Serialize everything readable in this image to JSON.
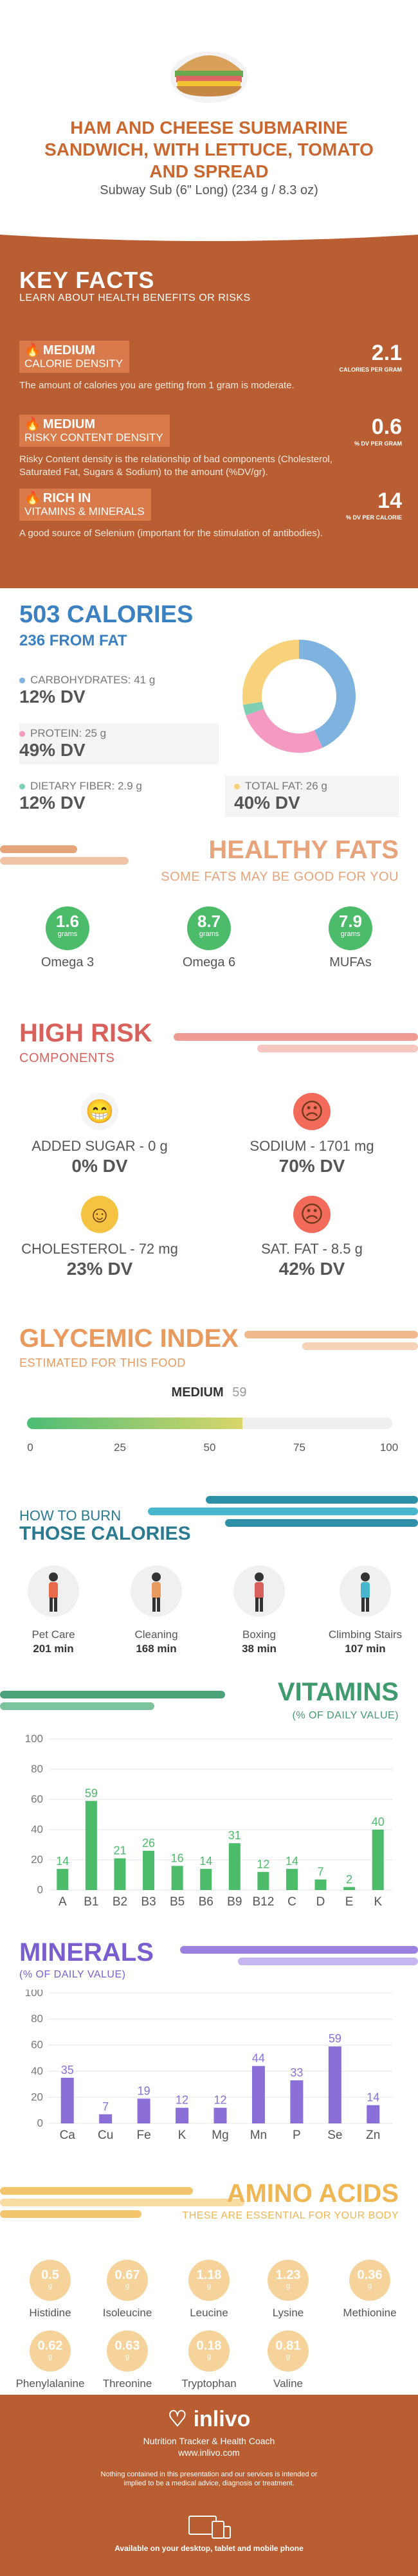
{
  "header": {
    "title": "HAM AND CHEESE SUBMARINE SANDWICH, WITH LETTUCE, TOMATO AND SPREAD",
    "subtitle": "Subway Sub (6\" Long) (234 g / 8.3 oz)"
  },
  "key_facts": {
    "title": "KEY FACTS",
    "subtitle": "LEARN ABOUT HEALTH BENEFITS OR RISKS",
    "items": [
      {
        "level": "MEDIUM",
        "label": "CALORIE DENSITY",
        "value": "2.1",
        "unit": "CALORIES PER GRAM",
        "desc": "The amount of calories you are getting from 1 gram is moderate.",
        "icon": "flame-icon"
      },
      {
        "level": "MEDIUM",
        "label": "RISKY CONTENT DENSITY",
        "value": "0.6",
        "unit": "% DV PER GRAM",
        "desc": "Risky Content density is the relationship of bad components (Cholesterol, Saturated Fat, Sugars & Sodium) to the amount (%DV/gr).",
        "icon": "flame-icon"
      },
      {
        "level": "RICH  IN",
        "label": "VITAMINS & MINERALS",
        "value": "14",
        "unit": "% DV PER CALORIE",
        "desc": "A good source of Selenium (important for the stimulation of antibodies).",
        "icon": "flame-icon"
      }
    ]
  },
  "calories": {
    "title": "503 CALORIES",
    "from_fat": "236 FROM FAT",
    "macros": [
      {
        "label": "CARBOHYDRATES: 41 g",
        "dv": "12% DV",
        "color": "#7fb3df"
      },
      {
        "label": "PROTEIN: 25 g",
        "dv": "49% DV",
        "color": "#f49ac1"
      },
      {
        "label": "DIETARY FIBER: 2.9 g",
        "dv": "12% DV",
        "color": "#7ed0b2"
      }
    ],
    "fat": {
      "label": "TOTAL FAT: 26 g",
      "dv": "40% DV",
      "color": "#f7d27a"
    },
    "donut": [
      {
        "name": "carbohydrates",
        "value": 41,
        "color": "#7fb3df"
      },
      {
        "name": "protein",
        "value": 25,
        "color": "#f49ac1"
      },
      {
        "name": "dietary fiber",
        "value": 2.9,
        "color": "#7ed0b2"
      },
      {
        "name": "total fat",
        "value": 26,
        "color": "#f7d27a"
      }
    ]
  },
  "healthy_fats": {
    "title": "HEALTHY FATS",
    "subtitle": "SOME FATS MAY BE GOOD FOR YOU",
    "items": [
      {
        "value": "1.6",
        "unit": "grams",
        "name": "Omega 3"
      },
      {
        "value": "8.7",
        "unit": "grams",
        "name": "Omega 6"
      },
      {
        "value": "7.9",
        "unit": "grams",
        "name": "MUFAs"
      }
    ]
  },
  "high_risk": {
    "title": "HIGH RISK",
    "subtitle": "COMPONENTS",
    "items": [
      {
        "label": "ADDED SUGAR - 0 g",
        "dv": "0% DV",
        "face": "grin",
        "color": "#f5f5f5"
      },
      {
        "label": "SODIUM - 1701 mg",
        "dv": "70% DV",
        "face": "sad",
        "color": "#f26b5b"
      },
      {
        "label": "CHOLESTEROL - 72 mg",
        "dv": "23% DV",
        "face": "smile",
        "color": "#f5c342"
      },
      {
        "label": "SAT. FAT - 8.5 g",
        "dv": "42% DV",
        "face": "sad",
        "color": "#f26b5b"
      }
    ]
  },
  "glycemic": {
    "title": "GLYCEMIC INDEX",
    "subtitle": "ESTIMATED FOR THIS FOOD",
    "level": "MEDIUM",
    "value": 59,
    "value_label": "59",
    "ticks": [
      "0",
      "25",
      "50",
      "75",
      "100"
    ]
  },
  "burn": {
    "title_small": "HOW TO BURN",
    "title_big": "THOSE CALORIES",
    "items": [
      {
        "name": "Pet Care",
        "minutes": "201 min"
      },
      {
        "name": "Cleaning",
        "minutes": "168 min"
      },
      {
        "name": "Boxing",
        "minutes": "38 min"
      },
      {
        "name": "Climbing Stairs",
        "minutes": "107 min"
      }
    ]
  },
  "vitamins": {
    "title": "VITAMINS",
    "subtitle": "(% OF DAILY VALUE)",
    "chart_data": {
      "type": "bar",
      "categories": [
        "A",
        "B1",
        "B2",
        "B3",
        "B5",
        "B6",
        "B9",
        "B12",
        "C",
        "D",
        "E",
        "K"
      ],
      "values": [
        14,
        59,
        21,
        26,
        16,
        14,
        31,
        12,
        14,
        7,
        2,
        40
      ],
      "ylim": [
        0,
        100
      ],
      "yticks": [
        "0",
        "20",
        "40",
        "60",
        "80",
        "100"
      ],
      "color": "#4cbb6a"
    }
  },
  "minerals": {
    "title": "MINERALS",
    "subtitle": "(% OF DAILY VALUE)",
    "chart_data": {
      "type": "bar",
      "categories": [
        "Ca",
        "Cu",
        "Fe",
        "K",
        "Mg",
        "Mn",
        "P",
        "Se",
        "Zn"
      ],
      "values": [
        35,
        7,
        19,
        12,
        12,
        44,
        33,
        59,
        14
      ],
      "ylim": [
        0,
        100
      ],
      "yticks": [
        "0",
        "20",
        "40",
        "60",
        "80",
        "100"
      ],
      "color": "#8b6fd8"
    }
  },
  "amino": {
    "title": "AMINO ACIDS",
    "subtitle": "THESE ARE ESSENTIAL FOR YOUR BODY",
    "items": [
      {
        "value": "0.5",
        "unit": "g",
        "name": "Histidine"
      },
      {
        "value": "0.67",
        "unit": "g",
        "name": "Isoleucine"
      },
      {
        "value": "1.18",
        "unit": "g",
        "name": "Leucine"
      },
      {
        "value": "1.23",
        "unit": "g",
        "name": "Lysine"
      },
      {
        "value": "0.36",
        "unit": "g",
        "name": "Methionine"
      },
      {
        "value": "0.62",
        "unit": "g",
        "name": "Phenylalanine"
      },
      {
        "value": "0.63",
        "unit": "g",
        "name": "Threonine"
      },
      {
        "value": "0.18",
        "unit": "g",
        "name": "Tryptophan"
      },
      {
        "value": "0.81",
        "unit": "g",
        "name": "Valine"
      }
    ]
  },
  "footer": {
    "brand": "inlivo",
    "tagline": "Nutrition Tracker & Health Coach",
    "site": "www.inlivo.com",
    "disclaimer": "Nothing contained in this presentation and our services is intended or implied to be a medical advice, diagnosis or treatment.",
    "available": "Available on your desktop, tablet and mobile phone"
  }
}
